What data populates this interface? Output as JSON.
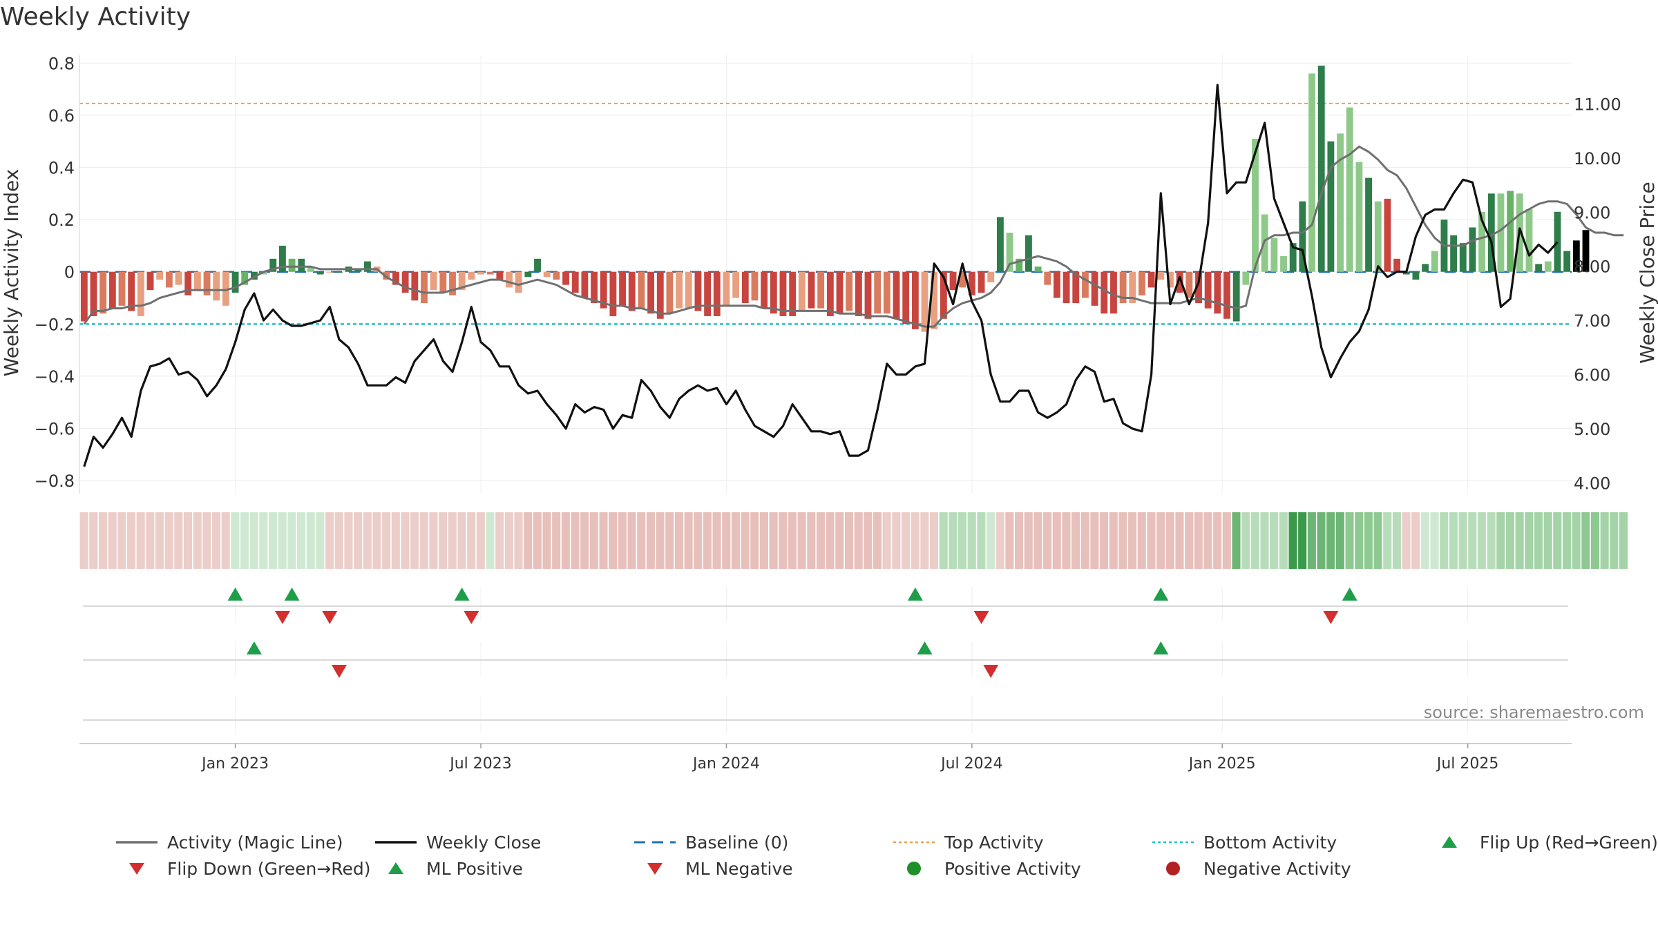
{
  "chart_data": {
    "type": "line",
    "title": "Weekly Activity",
    "ylabel_left": "Weekly Activity Index",
    "ylabel_right": "Weekly Close Price",
    "left_yticks": [
      "0.8",
      "0.6",
      "0.4",
      "0.2",
      "0",
      "−0.2",
      "−0.4",
      "−0.6",
      "−0.8"
    ],
    "left_ytick_values": [
      0.8,
      0.6,
      0.4,
      0.2,
      0,
      -0.2,
      -0.4,
      -0.6,
      -0.8
    ],
    "left_ylim": [
      -0.85,
      0.83
    ],
    "right_yticks": [
      "11.00",
      "10.00",
      "9.00",
      "8.00",
      "7.00",
      "6.00",
      "5.00",
      "4.00"
    ],
    "right_ytick_values": [
      11,
      10,
      9,
      8,
      7,
      6,
      5,
      4
    ],
    "right_ylim": [
      3.8,
      11.9
    ],
    "xticks": [
      "Jan 2023",
      "Jul 2023",
      "Jan 2024",
      "Jul 2024",
      "Jan 2025",
      "Jul 2025"
    ],
    "xtick_weeks": [
      16.5,
      42.5,
      68.5,
      94.5,
      121,
      147
    ],
    "top_activity": 0.645,
    "bottom_activity": -0.2,
    "baseline": 0,
    "weeks": 158,
    "activity": [
      -0.19,
      -0.17,
      -0.16,
      -0.14,
      -0.13,
      -0.15,
      -0.17,
      -0.07,
      -0.03,
      -0.06,
      -0.05,
      -0.09,
      -0.07,
      -0.09,
      -0.11,
      -0.13,
      -0.08,
      -0.05,
      -0.03,
      -0.01,
      0.05,
      0.1,
      0.05,
      0.05,
      0.02,
      -0.01,
      0.0,
      0.0,
      0.02,
      0.01,
      0.04,
      0.02,
      -0.03,
      -0.05,
      -0.08,
      -0.11,
      -0.12,
      -0.07,
      -0.08,
      -0.09,
      -0.07,
      -0.03,
      -0.01,
      -0.01,
      -0.03,
      -0.06,
      -0.08,
      -0.02,
      0.05,
      -0.02,
      -0.03,
      -0.05,
      -0.08,
      -0.1,
      -0.12,
      -0.14,
      -0.17,
      -0.13,
      -0.15,
      -0.14,
      -0.16,
      -0.18,
      -0.16,
      -0.14,
      -0.14,
      -0.15,
      -0.17,
      -0.17,
      -0.13,
      -0.1,
      -0.12,
      -0.11,
      -0.14,
      -0.16,
      -0.17,
      -0.17,
      -0.15,
      -0.14,
      -0.14,
      -0.17,
      -0.16,
      -0.15,
      -0.17,
      -0.18,
      -0.16,
      -0.16,
      -0.18,
      -0.2,
      -0.22,
      -0.23,
      -0.22,
      -0.18,
      -0.07,
      -0.06,
      -0.09,
      -0.08,
      -0.04,
      0.21,
      0.15,
      0.05,
      0.14,
      0.02,
      -0.05,
      -0.1,
      -0.12,
      -0.12,
      -0.1,
      -0.13,
      -0.16,
      -0.16,
      -0.12,
      -0.12,
      -0.09,
      -0.06,
      -0.03,
      -0.06,
      -0.08,
      -0.1,
      -0.12,
      -0.14,
      -0.16,
      -0.18,
      -0.19,
      -0.05,
      0.51,
      0.22,
      0.13,
      0.06,
      0.11,
      0.27,
      0.76,
      0.79,
      0.5,
      0.53,
      0.63,
      0.42,
      0.36,
      0.27,
      0.28,
      0.05,
      -0.01,
      -0.03,
      0.03,
      0.08,
      0.2,
      0.14,
      0.11,
      0.17,
      0.23,
      0.3,
      0.3,
      0.31,
      0.3,
      0.24,
      0.03,
      0.04,
      0.23,
      0.08,
      0.12,
      0.16
    ],
    "activity_colors": [
      "#c8453f",
      "#c8453f",
      "#d97b5f",
      "#c8453f",
      "#d97b5f",
      "#c8453f",
      "#e8a080",
      "#c8453f",
      "#e8a080",
      "#d97b5f",
      "#e8a080",
      "#c8453f",
      "#e8a080",
      "#d97b5f",
      "#e8a080",
      "#e8a080",
      "#2e7d4a",
      "#66b366",
      "#2e7d4a",
      "#8fc98a",
      "#2e7d4a",
      "#2e7d4a",
      "#66b366",
      "#2e7d4a",
      "#8fc98a",
      "#2e7d4a",
      "#e8a080",
      "#2e7d4a",
      "#2e7d4a",
      "#2e7d4a",
      "#2e7d4a",
      "#e8a080",
      "#d97b5f",
      "#c8453f",
      "#c8453f",
      "#c8453f",
      "#d97b5f",
      "#e8a080",
      "#d97b5f",
      "#d97b5f",
      "#e8a080",
      "#e8a080",
      "#e8a080",
      "#d97b5f",
      "#c8453f",
      "#e8a080",
      "#e8a080",
      "#2e7d4a",
      "#2e7d4a",
      "#e8a080",
      "#d97b5f",
      "#c8453f",
      "#c8453f",
      "#c8453f",
      "#c8453f",
      "#c8453f",
      "#c8453f",
      "#c8453f",
      "#c8453f",
      "#d97b5f",
      "#c8453f",
      "#c8453f",
      "#d97b5f",
      "#e8a080",
      "#e8a080",
      "#c8453f",
      "#c8453f",
      "#c8453f",
      "#e8a080",
      "#e8a080",
      "#c8453f",
      "#d97b5f",
      "#c8453f",
      "#c8453f",
      "#c8453f",
      "#c8453f",
      "#e8a080",
      "#c8453f",
      "#d97b5f",
      "#c8453f",
      "#c8453f",
      "#d97b5f",
      "#c8453f",
      "#c8453f",
      "#d97b5f",
      "#d97b5f",
      "#c8453f",
      "#c8453f",
      "#c8453f",
      "#e8a080",
      "#e8a080",
      "#c8453f",
      "#c8453f",
      "#d97b5f",
      "#c8453f",
      "#c8453f",
      "#e8a080",
      "#2e7d4a",
      "#8fc98a",
      "#66b366",
      "#2e7d4a",
      "#66b366",
      "#d97b5f",
      "#c8453f",
      "#c8453f",
      "#c8453f",
      "#d97b5f",
      "#c8453f",
      "#c8453f",
      "#c8453f",
      "#d97b5f",
      "#e8a080",
      "#d97b5f",
      "#c8453f",
      "#e8a080",
      "#e8a080",
      "#c8453f",
      "#d97b5f",
      "#c8453f",
      "#c8453f",
      "#c8453f",
      "#c8453f",
      "#2e7d4a",
      "#8fc98a",
      "#8fc98a",
      "#8fc98a",
      "#8fc98a",
      "#8fc98a",
      "#2e7d4a",
      "#2e7d4a",
      "#8fc98a",
      "#2e7d4a",
      "#2e7d4a",
      "#8fc98a",
      "#8fc98a",
      "#8fc98a",
      "#2e7d4a",
      "#8fc98a",
      "#c8453f",
      "#c8453f",
      "#2e7d4a",
      "#2e7d4a",
      "#2e7d4a",
      "#8fc98a",
      "#2e7d4a",
      "#2e7d4a",
      "#2e7d4a",
      "#2e7d4a",
      "#8fc98a",
      "#2e7d4a",
      "#8fc98a",
      "#66b366",
      "#8fc98a",
      "#8fc98a",
      "#2e7d4a",
      "#8fc98a",
      "#2e7d4a",
      "#2e7d4a"
    ],
    "magic_line": [
      -0.2,
      -0.15,
      -0.15,
      -0.14,
      -0.14,
      -0.13,
      -0.13,
      -0.12,
      -0.1,
      -0.09,
      -0.08,
      -0.07,
      -0.07,
      -0.07,
      -0.07,
      -0.07,
      -0.06,
      -0.04,
      -0.02,
      0.0,
      0.01,
      0.02,
      0.02,
      0.02,
      0.02,
      0.01,
      0.01,
      0.01,
      0.01,
      0.01,
      0.01,
      0.01,
      -0.02,
      -0.04,
      -0.06,
      -0.07,
      -0.08,
      -0.08,
      -0.08,
      -0.07,
      -0.06,
      -0.05,
      -0.04,
      -0.03,
      -0.03,
      -0.04,
      -0.05,
      -0.04,
      -0.03,
      -0.04,
      -0.05,
      -0.07,
      -0.09,
      -0.1,
      -0.11,
      -0.12,
      -0.13,
      -0.13,
      -0.14,
      -0.14,
      -0.15,
      -0.16,
      -0.16,
      -0.15,
      -0.14,
      -0.13,
      -0.13,
      -0.13,
      -0.13,
      -0.13,
      -0.13,
      -0.13,
      -0.14,
      -0.14,
      -0.15,
      -0.15,
      -0.15,
      -0.15,
      -0.15,
      -0.15,
      -0.16,
      -0.16,
      -0.16,
      -0.17,
      -0.17,
      -0.17,
      -0.18,
      -0.19,
      -0.2,
      -0.21,
      -0.21,
      -0.17,
      -0.14,
      -0.12,
      -0.11,
      -0.1,
      -0.08,
      -0.04,
      0.03,
      0.04,
      0.05,
      0.06,
      0.05,
      0.04,
      0.02,
      -0.01,
      -0.03,
      -0.05,
      -0.07,
      -0.09,
      -0.1,
      -0.1,
      -0.11,
      -0.12,
      -0.12,
      -0.12,
      -0.12,
      -0.11,
      -0.1,
      -0.11,
      -0.12,
      -0.13,
      -0.14,
      -0.13,
      0.02,
      0.12,
      0.14,
      0.14,
      0.15,
      0.15,
      0.18,
      0.3,
      0.4,
      0.43,
      0.45,
      0.48,
      0.46,
      0.43,
      0.39,
      0.37,
      0.32,
      0.25,
      0.18,
      0.13,
      0.1,
      0.1,
      0.1,
      0.12,
      0.13,
      0.14,
      0.16,
      0.19,
      0.22,
      0.24,
      0.26,
      0.27,
      0.27,
      0.26,
      0.22,
      0.17,
      0.15,
      0.15,
      0.14,
      0.14
    ],
    "weekly_close": [
      4.3,
      4.85,
      4.65,
      4.9,
      5.2,
      4.85,
      5.7,
      6.15,
      6.2,
      6.3,
      6.0,
      6.05,
      5.9,
      5.6,
      5.8,
      6.1,
      6.6,
      7.2,
      7.5,
      7.0,
      7.2,
      7.0,
      6.9,
      6.9,
      6.95,
      7.0,
      7.25,
      6.65,
      6.5,
      6.2,
      5.8,
      5.8,
      5.8,
      5.95,
      5.85,
      6.25,
      6.45,
      6.65,
      6.25,
      6.05,
      6.6,
      7.25,
      6.6,
      6.45,
      6.15,
      6.15,
      5.8,
      5.65,
      5.7,
      5.45,
      5.25,
      5.0,
      5.45,
      5.3,
      5.4,
      5.35,
      5.0,
      5.25,
      5.2,
      5.9,
      5.7,
      5.4,
      5.2,
      5.55,
      5.7,
      5.8,
      5.7,
      5.75,
      5.45,
      5.7,
      5.35,
      5.05,
      4.95,
      4.85,
      5.05,
      5.45,
      5.2,
      4.95,
      4.95,
      4.9,
      4.95,
      4.5,
      4.5,
      4.6,
      5.35,
      6.2,
      6.0,
      6.0,
      6.15,
      6.2,
      8.05,
      7.8,
      7.3,
      8.05,
      7.35,
      7.0,
      6.0,
      5.5,
      5.5,
      5.7,
      5.7,
      5.3,
      5.2,
      5.3,
      5.45,
      5.9,
      6.15,
      6.05,
      5.5,
      5.55,
      5.1,
      5.0,
      4.95,
      6.0,
      9.35,
      7.3,
      7.8,
      7.3,
      7.7,
      8.8,
      11.35,
      9.35,
      9.55,
      9.55,
      10.1,
      10.65,
      9.25,
      8.8,
      8.35,
      8.3,
      7.45,
      6.5,
      5.95,
      6.3,
      6.6,
      6.8,
      7.2,
      8.0,
      7.8,
      7.9,
      7.9,
      8.55,
      8.95,
      9.05,
      9.05,
      9.35,
      9.6,
      9.55,
      8.85,
      8.45,
      7.25,
      7.4,
      8.7,
      8.2,
      8.4,
      8.25,
      8.45
    ],
    "color_strip": [
      "#ebcdc9",
      "#ebcdc9",
      "#ebcdc9",
      "#ebcdc9",
      "#ebcdc9",
      "#ebcdc9",
      "#ebcdc9",
      "#ebcdc9",
      "#ebcdc9",
      "#ebcdc9",
      "#ebcdc9",
      "#ebcdc9",
      "#ebcdc9",
      "#ebcdc9",
      "#ebcdc9",
      "#ebcdc9",
      "#cfe8d2",
      "#cfe8d2",
      "#cfe8d2",
      "#cfe8d2",
      "#cfe8d2",
      "#cfe8d2",
      "#cfe8d2",
      "#cfe8d2",
      "#cfe8d2",
      "#cfe8d2",
      "#ebcdc9",
      "#ebcdc9",
      "#ebcdc9",
      "#ebcdc9",
      "#ebcdc9",
      "#ebcdc9",
      "#ebcdc9",
      "#ebcdc9",
      "#ebcdc9",
      "#ebcdc9",
      "#ebcdc9",
      "#ebcdc9",
      "#ebcdc9",
      "#ebcdc9",
      "#ebcdc9",
      "#ebcdc9",
      "#ebcdc9",
      "#cfe8d2",
      "#ebcdc9",
      "#ebcdc9",
      "#ebcdc9",
      "#e7bfbb",
      "#e7bfbb",
      "#e7bfbb",
      "#e7bfbb",
      "#e7bfbb",
      "#e7bfbb",
      "#e7bfbb",
      "#e7bfbb",
      "#e7bfbb",
      "#e7bfbb",
      "#e7bfbb",
      "#e7bfbb",
      "#e7bfbb",
      "#e7bfbb",
      "#e7bfbb",
      "#e7bfbb",
      "#e7bfbb",
      "#e7bfbb",
      "#e7bfbb",
      "#e7bfbb",
      "#e7bfbb",
      "#e7bfbb",
      "#e7bfbb",
      "#e7bfbb",
      "#e7bfbb",
      "#e7bfbb",
      "#e7bfbb",
      "#e7bfbb",
      "#e7bfbb",
      "#e7bfbb",
      "#e7bfbb",
      "#e7bfbb",
      "#e7bfbb",
      "#e7bfbb",
      "#e7bfbb",
      "#e7bfbb",
      "#e7bfbb",
      "#e7bfbb",
      "#ebcdc9",
      "#ebcdc9",
      "#ebcdc9",
      "#ebcdc9",
      "#ebcdc9",
      "#ebcdc9",
      "#b7dcb9",
      "#b7dcb9",
      "#b7dcb9",
      "#b7dcb9",
      "#b7dcb9",
      "#cfe8d2",
      "#ebcdc9",
      "#e7bfbb",
      "#e7bfbb",
      "#e7bfbb",
      "#e7bfbb",
      "#e7bfbb",
      "#e7bfbb",
      "#e7bfbb",
      "#e7bfbb",
      "#e7bfbb",
      "#e7bfbb",
      "#e7bfbb",
      "#e7bfbb",
      "#e7bfbb",
      "#e7bfbb",
      "#e7bfbb",
      "#e7bfbb",
      "#e7bfbb",
      "#e7bfbb",
      "#e7bfbb",
      "#e7bfbb",
      "#e7bfbb",
      "#e7bfbb",
      "#e7bfbb",
      "#e7bfbb",
      "#6db574",
      "#b7dcb9",
      "#b7dcb9",
      "#b7dcb9",
      "#b7dcb9",
      "#b7dcb9",
      "#3a9a4a",
      "#3a9a4a",
      "#6db574",
      "#6db574",
      "#6db574",
      "#6db574",
      "#8fc992",
      "#8fc992",
      "#8fc992",
      "#8fc992",
      "#b7dcb9",
      "#b7dcb9",
      "#ebcdc9",
      "#ebcdc9",
      "#cfe8d2",
      "#cfe8d2",
      "#b7dcb9",
      "#b7dcb9",
      "#b7dcb9",
      "#b7dcb9",
      "#b7dcb9",
      "#b7dcb9",
      "#a3d3a6",
      "#a3d3a6",
      "#a3d3a6",
      "#a3d3a6",
      "#a3d3a6",
      "#a3d3a6",
      "#a3d3a6",
      "#a3d3a6",
      "#a3d3a6",
      "#8fc992",
      "#8fc992",
      "#a3d3a6",
      "#a3d3a6",
      "#a3d3a6"
    ],
    "flip_up_weeks": [
      16.5,
      22.5,
      40.5,
      88.5,
      114.5,
      134.5
    ],
    "flip_down_weeks": [
      21.5,
      26.5,
      41.5,
      95.5,
      132.5
    ],
    "ml_positive_weeks": [
      18.5,
      89.5,
      114.5
    ],
    "ml_negative_weeks": [
      27.5,
      96.5
    ],
    "source": "source: sharemaestro.com",
    "legend": [
      {
        "label": "Activity (Magic Line)",
        "kind": "line",
        "color": "#707070"
      },
      {
        "label": "Weekly Close",
        "kind": "line",
        "color": "#111111"
      },
      {
        "label": "Baseline (0)",
        "kind": "dashed",
        "color": "#1f6fb5"
      },
      {
        "label": "Top Activity",
        "kind": "dotted",
        "color": "#f0a040"
      },
      {
        "label": "Bottom Activity",
        "kind": "dotted",
        "color": "#20c0d0"
      },
      {
        "label": "Flip Up (Red→Green)",
        "kind": "triangle-up",
        "color": "#1f9e4a"
      },
      {
        "label": "Flip Down (Green→Red)",
        "kind": "triangle-down",
        "color": "#d32f2f"
      },
      {
        "label": "ML Positive",
        "kind": "triangle-up",
        "color": "#1f9e4a"
      },
      {
        "label": "ML Negative",
        "kind": "triangle-down",
        "color": "#d32f2f"
      },
      {
        "label": "Positive Activity",
        "kind": "circle",
        "color": "#1f8f2a"
      },
      {
        "label": "Negative Activity",
        "kind": "circle",
        "color": "#b22222"
      }
    ],
    "colors": {
      "magic_line": "#707070",
      "weekly_close": "#111111",
      "baseline": "#1f6fb5",
      "top_activity": "#f0a040",
      "bottom_activity": "#20c0d0",
      "flip_up": "#1f9e4a",
      "flip_down": "#d32f2f"
    }
  }
}
